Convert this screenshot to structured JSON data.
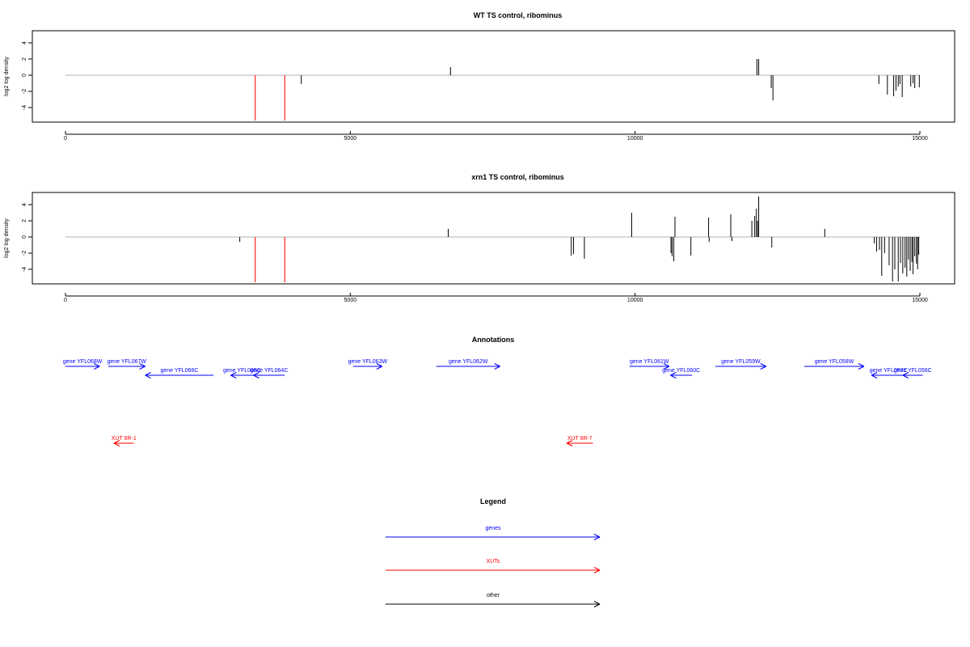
{
  "chart_data": [
    {
      "type": "bar",
      "title": "WT TS control, ribominus",
      "ylabel": "log2 log density",
      "xlim": [
        0,
        15000
      ],
      "ylim": [
        -5.8,
        5.5
      ],
      "xticks": [
        0,
        5000,
        10000,
        15000
      ],
      "yticks": [
        -4,
        -2,
        0,
        2,
        4
      ],
      "baseline": 0,
      "highlight_color": "#ff3333",
      "bars": [
        {
          "x": 3330,
          "y": -5.6,
          "highlight": true
        },
        {
          "x": 3850,
          "y": -5.6,
          "highlight": true
        },
        {
          "x": 4140,
          "y": -1.1
        },
        {
          "x": 6760,
          "y": 1.0
        },
        {
          "x": 12140,
          "y": 2.0
        },
        {
          "x": 12170,
          "y": 2.0
        },
        {
          "x": 12390,
          "y": -1.6
        },
        {
          "x": 12420,
          "y": -3.1
        },
        {
          "x": 14280,
          "y": -1.1
        },
        {
          "x": 14430,
          "y": -2.4
        },
        {
          "x": 14540,
          "y": -2.6
        },
        {
          "x": 14580,
          "y": -1.9
        },
        {
          "x": 14620,
          "y": -1.4
        },
        {
          "x": 14650,
          "y": -1.1
        },
        {
          "x": 14690,
          "y": -2.7
        },
        {
          "x": 14840,
          "y": -1.4
        },
        {
          "x": 14880,
          "y": -1.0
        },
        {
          "x": 14910,
          "y": -1.6
        },
        {
          "x": 14990,
          "y": -1.5
        }
      ]
    },
    {
      "type": "bar",
      "title": "xrn1 TS control, ribominus",
      "ylabel": "log2 log density",
      "xlim": [
        0,
        15000
      ],
      "ylim": [
        -5.8,
        5.5
      ],
      "xticks": [
        0,
        5000,
        10000,
        15000
      ],
      "yticks": [
        -4,
        -2,
        0,
        2,
        4
      ],
      "baseline": 0,
      "highlight_color": "#ff3333",
      "bars": [
        {
          "x": 3060,
          "y": -0.6
        },
        {
          "x": 3330,
          "y": -5.6,
          "highlight": true
        },
        {
          "x": 3850,
          "y": -5.6,
          "highlight": true
        },
        {
          "x": 6720,
          "y": 1.0
        },
        {
          "x": 8880,
          "y": -2.3
        },
        {
          "x": 8920,
          "y": -2.1
        },
        {
          "x": 9110,
          "y": -2.7
        },
        {
          "x": 9940,
          "y": 3.0
        },
        {
          "x": 10630,
          "y": -2.0
        },
        {
          "x": 10650,
          "y": -2.4
        },
        {
          "x": 10680,
          "y": -3.0
        },
        {
          "x": 10700,
          "y": 2.5
        },
        {
          "x": 10980,
          "y": -2.3
        },
        {
          "x": 11290,
          "y": 2.4
        },
        {
          "x": 11300,
          "y": -0.6
        },
        {
          "x": 11680,
          "y": 2.8
        },
        {
          "x": 11700,
          "y": -0.5
        },
        {
          "x": 12050,
          "y": 2.0
        },
        {
          "x": 12100,
          "y": 2.6
        },
        {
          "x": 12130,
          "y": 3.5
        },
        {
          "x": 12150,
          "y": 2.0
        },
        {
          "x": 12170,
          "y": 5.0
        },
        {
          "x": 12400,
          "y": -1.3
        },
        {
          "x": 13330,
          "y": 1.0
        },
        {
          "x": 14200,
          "y": -0.8
        },
        {
          "x": 14240,
          "y": -1.8
        },
        {
          "x": 14290,
          "y": -1.6
        },
        {
          "x": 14330,
          "y": -4.8
        },
        {
          "x": 14380,
          "y": -2.0
        },
        {
          "x": 14460,
          "y": -3.5
        },
        {
          "x": 14520,
          "y": -5.5
        },
        {
          "x": 14560,
          "y": -4.0
        },
        {
          "x": 14620,
          "y": -5.5
        },
        {
          "x": 14660,
          "y": -3.2
        },
        {
          "x": 14700,
          "y": -4.5
        },
        {
          "x": 14740,
          "y": -3.8
        },
        {
          "x": 14770,
          "y": -4.9
        },
        {
          "x": 14800,
          "y": -2.8
        },
        {
          "x": 14830,
          "y": -4.2
        },
        {
          "x": 14860,
          "y": -3.1
        },
        {
          "x": 14880,
          "y": -4.6
        },
        {
          "x": 14910,
          "y": -2.4
        },
        {
          "x": 14940,
          "y": -3.3
        },
        {
          "x": 14960,
          "y": -4.0
        },
        {
          "x": 14980,
          "y": -2.2
        }
      ]
    }
  ],
  "annotations": {
    "title": "Annotations",
    "xlim": [
      0,
      15000
    ],
    "items": [
      {
        "label": "gene YFL068W",
        "start": 0,
        "end": 600,
        "strand": "+",
        "row": 0,
        "kind": "genes"
      },
      {
        "label": "gene YFL067W",
        "start": 750,
        "end": 1400,
        "strand": "+",
        "row": 0,
        "kind": "genes"
      },
      {
        "label": "gene YFL066C",
        "start": 1400,
        "end": 2600,
        "strand": "-",
        "row": 1,
        "kind": "genes"
      },
      {
        "label": "gene YFL065C",
        "start": 2900,
        "end": 3300,
        "strand": "-",
        "row": 1,
        "kind": "genes"
      },
      {
        "label": "gene YFL064C",
        "start": 3300,
        "end": 3850,
        "strand": "-",
        "row": 1,
        "kind": "genes"
      },
      {
        "label": "gene YFL063W",
        "start": 5050,
        "end": 5560,
        "strand": "+",
        "row": 0,
        "kind": "genes"
      },
      {
        "label": "gene YFL062W",
        "start": 6510,
        "end": 7630,
        "strand": "+",
        "row": 0,
        "kind": "genes"
      },
      {
        "label": "gene YFL061W",
        "start": 9900,
        "end": 10600,
        "strand": "+",
        "row": 0,
        "kind": "genes"
      },
      {
        "label": "gene YFL060C",
        "start": 10620,
        "end": 11000,
        "strand": "-",
        "row": 1,
        "kind": "genes"
      },
      {
        "label": "gene YFL059W",
        "start": 11410,
        "end": 12300,
        "strand": "+",
        "row": 0,
        "kind": "genes"
      },
      {
        "label": "gene YFL058W",
        "start": 12970,
        "end": 14020,
        "strand": "+",
        "row": 0,
        "kind": "genes"
      },
      {
        "label": "gene YFL057C",
        "start": 14150,
        "end": 14750,
        "strand": "-",
        "row": 1,
        "kind": "genes"
      },
      {
        "label": "gene YFL056C",
        "start": 14700,
        "end": 15050,
        "strand": "-",
        "row": 1,
        "kind": "genes"
      },
      {
        "label": "XUT 6R-1",
        "start": 850,
        "end": 1200,
        "strand": "-",
        "row": 2,
        "kind": "XUTs"
      },
      {
        "label": "XUT 6R-7",
        "start": 8800,
        "end": 9260,
        "strand": "-",
        "row": 2,
        "kind": "XUTs"
      }
    ]
  },
  "legend": {
    "title": "Legend",
    "items": [
      {
        "label": "genes",
        "color": "#0000ff"
      },
      {
        "label": "XUTs",
        "color": "#ff0000"
      },
      {
        "label": "other",
        "color": "#000000"
      }
    ]
  },
  "colors": {
    "baseline": "#b3b3b3",
    "bar": "#000000",
    "genes": "#0000ff",
    "XUTs": "#ff0000",
    "other": "#000000"
  }
}
